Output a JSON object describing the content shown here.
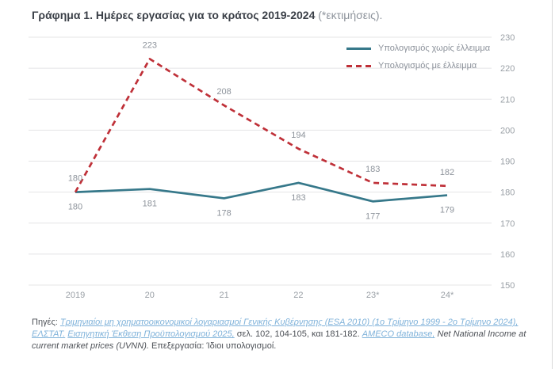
{
  "header": {
    "title": "Γράφημα 1. Ημέρες εργασίας για το κράτος 2019-2024",
    "note": "(*εκτιμήσεις)."
  },
  "chart_data": {
    "type": "line",
    "categories": [
      "2019",
      "20",
      "21",
      "22",
      "23*",
      "24*"
    ],
    "series": [
      {
        "name": "Υπολογισμός χωρίς έλλειμμα",
        "values": [
          180,
          181,
          178,
          183,
          177,
          179
        ],
        "color": "#36788a",
        "style": "solid",
        "label_position": "below"
      },
      {
        "name": "Υπολογισμός με έλλειμμα",
        "values": [
          180,
          223,
          208,
          194,
          183,
          182
        ],
        "color": "#bf3038",
        "style": "dashed",
        "label_position": "above"
      }
    ],
    "ylim": [
      150,
      230
    ],
    "ytick_step": 10,
    "yticks": [
      150,
      160,
      170,
      180,
      190,
      200,
      210,
      220,
      230
    ],
    "grid": true,
    "y_axis_side": "right",
    "legend_position": "top-right",
    "colors": {
      "grid": "#e4e4e6",
      "axis_text": "#9aa0a6",
      "data_label": "#8d939b"
    }
  },
  "footnote": {
    "runs": [
      {
        "text": "Πηγές: ",
        "style": "plain",
        "name": "footnote-sources-label"
      },
      {
        "text": "Τριμηνιαίοι μη χρηματοοικονομικοί λογαριασμοί Γενικής Κυβέρνησης (ESA 2010) (1ο Τρίμηνο 1999 - 2ο Τρίμηνο 2024), ΕΛΣΤΑΤ.",
        "style": "link",
        "name": "link-elstat-quarterly-accounts"
      },
      {
        "text": " ",
        "style": "plain",
        "name": "footnote-text"
      },
      {
        "text": "Εισηγητική Έκθεση Προϋπολογισμού 2025,",
        "style": "link",
        "name": "link-budget-introductory-report-2025"
      },
      {
        "text": " σελ. 102, 104-105, και 181-182. ",
        "style": "plain",
        "name": "footnote-text"
      },
      {
        "text": "AMECO database,",
        "style": "link",
        "name": "link-ameco-database"
      },
      {
        "text": " Net National Income at current market prices (UVNN).",
        "style": "italic",
        "name": "footnote-text-english"
      },
      {
        "text": " Επεξεργασία: Ίδιοι υπολογισμοί.",
        "style": "plain",
        "name": "footnote-processing-note"
      }
    ]
  }
}
